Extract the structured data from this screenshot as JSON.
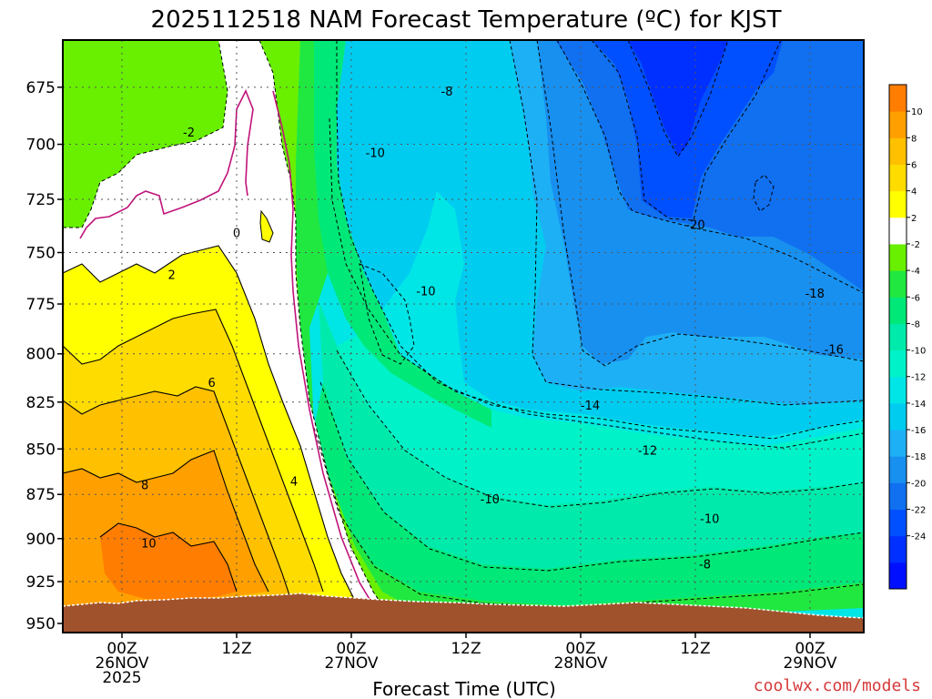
{
  "title": "2025112518 NAM Forecast Temperature (ºC) for KJST",
  "credit": "coolwx.com/models",
  "colors": {
    "credit": "#d63a3a",
    "terrain": "#a0522d",
    "freezing_contour": "#c0137a",
    "positive_contour": "#000000"
  },
  "chart_data": {
    "type": "heatmap",
    "title": "2025112518 NAM Forecast Temperature (ºC) for KJST",
    "xlabel": "Forecast Time (UTC)",
    "ylabel": "",
    "x_units": "hours since 2025-11-25 18Z",
    "xlim": [
      0,
      84
    ],
    "ylim": [
      950,
      655
    ],
    "y_scale": "log-pressure",
    "grid": true,
    "x_ticks": [
      {
        "hour": 6,
        "lines": [
          "00Z",
          "26NOV",
          "2025"
        ]
      },
      {
        "hour": 18,
        "lines": [
          "12Z"
        ]
      },
      {
        "hour": 30,
        "lines": [
          "00Z",
          "27NOV"
        ]
      },
      {
        "hour": 42,
        "lines": [
          "12Z"
        ]
      },
      {
        "hour": 54,
        "lines": [
          "00Z",
          "28NOV"
        ]
      },
      {
        "hour": 66,
        "lines": [
          "12Z"
        ]
      },
      {
        "hour": 78,
        "lines": [
          "00Z",
          "29NOV"
        ]
      }
    ],
    "y_ticks": [
      675,
      700,
      725,
      750,
      775,
      800,
      825,
      850,
      875,
      900,
      925,
      950
    ],
    "colorbar": {
      "levels": [
        -26,
        -24,
        -22,
        -20,
        -18,
        -16,
        -14,
        -12,
        -10,
        -8,
        -6,
        -4,
        -2,
        2,
        4,
        6,
        8,
        10,
        12
      ],
      "tick_labels": [
        "10",
        "8",
        "6",
        "4",
        "2",
        "-2",
        "-4",
        "-6",
        "-8",
        "-10",
        "-12",
        "-14",
        "-16",
        "-18",
        "-20",
        "-22",
        "-24"
      ],
      "colors": [
        "#0010ff",
        "#0030ff",
        "#0050ff",
        "#1070f0",
        "#1890f0",
        "#1eb0f5",
        "#00ccf0",
        "#00e6e6",
        "#00f2c8",
        "#00ebab",
        "#00e878",
        "#20e840",
        "#68f000",
        "#ffffff",
        "#ffff00",
        "#ffdc00",
        "#ffc000",
        "#ffa000",
        "#ff7d00"
      ]
    },
    "contour_labels": [
      {
        "value": "-2",
        "hour": 13.0,
        "pressure": 695
      },
      {
        "value": "0",
        "hour": 18.0,
        "pressure": 741
      },
      {
        "value": "2",
        "hour": 11.2,
        "pressure": 761
      },
      {
        "value": "6",
        "hour": 15.4,
        "pressure": 815
      },
      {
        "value": "4",
        "hour": 24.0,
        "pressure": 868
      },
      {
        "value": "8",
        "hour": 8.4,
        "pressure": 870
      },
      {
        "value": "10",
        "hour": 8.8,
        "pressure": 903
      },
      {
        "value": "-8",
        "hour": 40.0,
        "pressure": 677
      },
      {
        "value": "-10",
        "hour": 32.5,
        "pressure": 704
      },
      {
        "value": "-10",
        "hour": 37.8,
        "pressure": 769
      },
      {
        "value": "-20",
        "hour": 66.0,
        "pressure": 737
      },
      {
        "value": "-18",
        "hour": 78.5,
        "pressure": 770
      },
      {
        "value": "-16",
        "hour": 80.5,
        "pressure": 798
      },
      {
        "value": "-14",
        "hour": 55.0,
        "pressure": 827
      },
      {
        "value": "-12",
        "hour": 61.0,
        "pressure": 851
      },
      {
        "value": "-10",
        "hour": 44.5,
        "pressure": 878
      },
      {
        "value": "-10",
        "hour": 67.5,
        "pressure": 889
      },
      {
        "value": "-8",
        "hour": 67.0,
        "pressure": 915
      }
    ]
  }
}
